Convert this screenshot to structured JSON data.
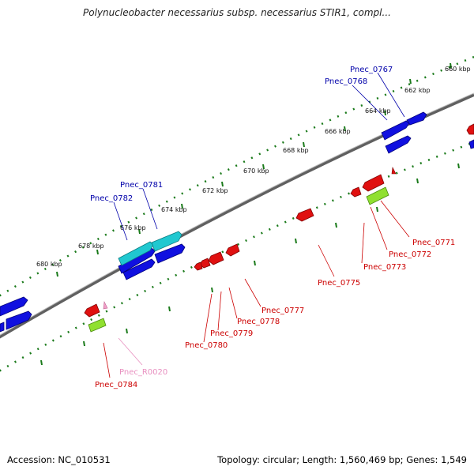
{
  "title": "Polynucleobacter necessarius subsp. necessarius STIR1, compl...",
  "footer": {
    "accession": "Accession: NC_010531",
    "summary": "Topology: circular; Length: 1,560,469 bp; Genes: 1,549"
  },
  "colors": {
    "forward_gene": "#1010e0",
    "reverse_gene": "#e01010",
    "rna_forward": "#20c8d0",
    "rna_reverse": "#90e030",
    "pseudo_marker": "#f0a0c8",
    "tick": "#1a7a1a",
    "backbone": "#707070",
    "forward_label": "#0000aa",
    "reverse_label": "#cc0000",
    "rna_label": "#e890c0"
  },
  "kbp_ticks": [
    "660 kbp",
    "662 kbp",
    "664 kbp",
    "666 kbp",
    "668 kbp",
    "670 kbp",
    "672 kbp",
    "674 kbp",
    "676 kbp",
    "678 kbp",
    "680 kbp"
  ],
  "labels": {
    "forward": [
      "Pnec_0767",
      "Pnec_0768",
      "Pnec_0781",
      "Pnec_0782"
    ],
    "reverse": [
      "Pnec_0771",
      "Pnec_0772",
      "Pnec_0773",
      "Pnec_0775",
      "Pnec_0777",
      "Pnec_0778",
      "Pnec_0779",
      "Pnec_0780",
      "Pnec_0784"
    ],
    "rna": [
      "Pnec_R0020"
    ]
  }
}
